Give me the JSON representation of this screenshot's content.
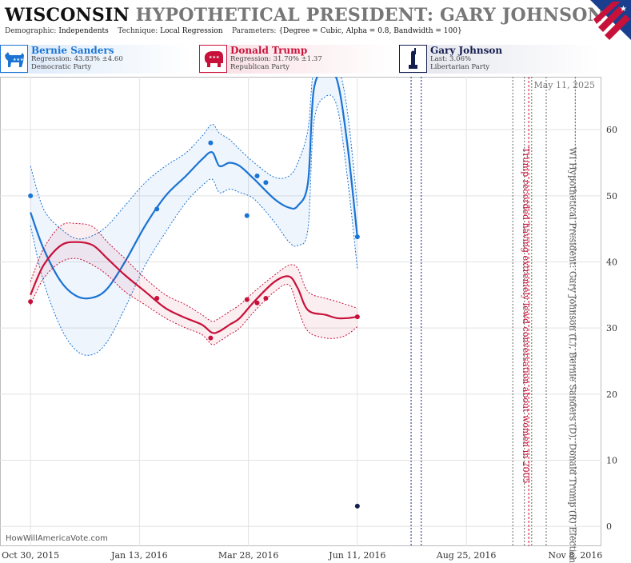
{
  "header": {
    "state": "WISCONSIN",
    "title": "HYPOTHETICAL PRESIDENT: GARY JOHNSON (L) I",
    "demographic_label": "Demographic:",
    "demographic": "Independents",
    "technique_label": "Technique:",
    "technique": "Local Regression",
    "parameters_label": "Parameters:",
    "parameters": "{Degree = Cubic, Alpha = 0.8, Bandwidth = 100}"
  },
  "legend": [
    {
      "name": "Bernie Sanders",
      "stat": "Regression: 43.83% ±4.60",
      "party": "Democratic Party",
      "color": "#1a74d4",
      "icon": "donkey-icon"
    },
    {
      "name": "Donald Trump",
      "stat": "Regression: 31.70% ±1.37",
      "party": "Republican Party",
      "color": "#c8113a",
      "icon": "elephant-icon"
    },
    {
      "name": "Gary Johnson",
      "stat": "Last: 3.06%",
      "party": "Libertarian Party",
      "color": "#131d4e",
      "icon": "liberty-icon"
    }
  ],
  "watermark": "HowWillAmericaVote.com",
  "date_label": "May 11, 2025",
  "chart_data": {
    "type": "line",
    "xlabel": "",
    "ylabel": "",
    "ylim": [
      -3,
      68
    ],
    "xlim": [
      "2015-10-09",
      "2016-11-26"
    ],
    "y_ticks": [
      0,
      10,
      20,
      30,
      40,
      50,
      60
    ],
    "x_ticks": [
      {
        "date": "2015-10-30",
        "label": "Oct 30, 2015"
      },
      {
        "date": "2016-01-13",
        "label": "Jan 13, 2016"
      },
      {
        "date": "2016-03-28",
        "label": "Mar 28, 2016"
      },
      {
        "date": "2016-06-11",
        "label": "Jun 11, 2016"
      },
      {
        "date": "2016-08-25",
        "label": "Aug 25, 2016"
      },
      {
        "date": "2016-11-08",
        "label": "Nov 8, 2016"
      }
    ],
    "grid": true,
    "series": [
      {
        "name": "Bernie Sanders",
        "color": "#1a74d4",
        "points": [
          [
            "2015-10-30",
            50
          ],
          [
            "2016-01-25",
            48
          ],
          [
            "2016-03-02",
            58
          ],
          [
            "2016-03-27",
            47
          ],
          [
            "2016-04-03",
            53
          ],
          [
            "2016-04-09",
            52
          ],
          [
            "2016-06-11",
            43.8
          ]
        ],
        "trend": [
          [
            "2015-10-30",
            47.5
          ],
          [
            "2015-11-08",
            42
          ],
          [
            "2015-11-20",
            37
          ],
          [
            "2015-12-01",
            34.8
          ],
          [
            "2015-12-12",
            34.6
          ],
          [
            "2015-12-22",
            36
          ],
          [
            "2016-01-03",
            40
          ],
          [
            "2016-01-17",
            45.5
          ],
          [
            "2016-01-31",
            50
          ],
          [
            "2016-02-14",
            53
          ],
          [
            "2016-02-25",
            55.5
          ],
          [
            "2016-03-03",
            56.6
          ],
          [
            "2016-03-08",
            54.5
          ],
          [
            "2016-03-15",
            55
          ],
          [
            "2016-03-22",
            54.5
          ],
          [
            "2016-04-01",
            52.5
          ],
          [
            "2016-04-15",
            49.5
          ],
          [
            "2016-04-25",
            48.2
          ],
          [
            "2016-05-01",
            48.5
          ],
          [
            "2016-05-08",
            52
          ],
          [
            "2016-05-12",
            66
          ],
          [
            "2016-05-20",
            69
          ],
          [
            "2016-05-28",
            67.5
          ],
          [
            "2016-06-04",
            58
          ],
          [
            "2016-06-11",
            43.8
          ]
        ],
        "upper": [
          [
            "2015-10-30",
            54.5
          ],
          [
            "2015-11-08",
            48
          ],
          [
            "2015-11-20",
            45
          ],
          [
            "2015-12-01",
            43.5
          ],
          [
            "2015-12-12",
            44
          ],
          [
            "2015-12-22",
            45.5
          ],
          [
            "2016-01-03",
            48.5
          ],
          [
            "2016-01-17",
            52
          ],
          [
            "2016-01-31",
            54.5
          ],
          [
            "2016-02-14",
            56.5
          ],
          [
            "2016-02-25",
            59
          ],
          [
            "2016-03-03",
            60.8
          ],
          [
            "2016-03-08",
            59.5
          ],
          [
            "2016-03-15",
            58.5
          ],
          [
            "2016-03-22",
            57
          ],
          [
            "2016-04-01",
            55
          ],
          [
            "2016-04-15",
            52.8
          ],
          [
            "2016-04-25",
            53
          ],
          [
            "2016-05-01",
            55
          ],
          [
            "2016-05-08",
            60
          ],
          [
            "2016-05-12",
            69
          ],
          [
            "2016-05-20",
            70
          ],
          [
            "2016-05-28",
            70
          ],
          [
            "2016-06-04",
            63
          ],
          [
            "2016-06-11",
            48.5
          ]
        ],
        "lower": [
          [
            "2015-10-30",
            45.5
          ],
          [
            "2015-11-08",
            37
          ],
          [
            "2015-11-20",
            30
          ],
          [
            "2015-12-01",
            26.5
          ],
          [
            "2015-12-12",
            26
          ],
          [
            "2015-12-22",
            28
          ],
          [
            "2016-01-03",
            33
          ],
          [
            "2016-01-17",
            39.5
          ],
          [
            "2016-01-31",
            44.5
          ],
          [
            "2016-02-14",
            49
          ],
          [
            "2016-02-25",
            51.5
          ],
          [
            "2016-03-03",
            52.5
          ],
          [
            "2016-03-08",
            50.5
          ],
          [
            "2016-03-15",
            51
          ],
          [
            "2016-03-22",
            50.5
          ],
          [
            "2016-04-01",
            49.5
          ],
          [
            "2016-04-15",
            46
          ],
          [
            "2016-04-25",
            43
          ],
          [
            "2016-05-01",
            42.5
          ],
          [
            "2016-05-08",
            45
          ],
          [
            "2016-05-12",
            61
          ],
          [
            "2016-05-20",
            65
          ],
          [
            "2016-05-28",
            63.5
          ],
          [
            "2016-06-04",
            53
          ],
          [
            "2016-06-11",
            39
          ]
        ]
      },
      {
        "name": "Donald Trump",
        "color": "#c8113a",
        "points": [
          [
            "2015-10-30",
            34
          ],
          [
            "2016-01-25",
            34.5
          ],
          [
            "2016-03-02",
            28.5
          ],
          [
            "2016-03-27",
            34.3
          ],
          [
            "2016-04-03",
            33.8
          ],
          [
            "2016-04-09",
            34.5
          ],
          [
            "2016-06-11",
            31.7
          ]
        ],
        "trend": [
          [
            "2015-10-30",
            35
          ],
          [
            "2015-11-08",
            39.5
          ],
          [
            "2015-11-20",
            42.5
          ],
          [
            "2015-12-01",
            43
          ],
          [
            "2015-12-12",
            42.5
          ],
          [
            "2015-12-22",
            40.5
          ],
          [
            "2016-01-03",
            38
          ],
          [
            "2016-01-17",
            35.5
          ],
          [
            "2016-01-31",
            33
          ],
          [
            "2016-02-14",
            31.5
          ],
          [
            "2016-02-25",
            30.5
          ],
          [
            "2016-03-03",
            29.3
          ],
          [
            "2016-03-08",
            29.5
          ],
          [
            "2016-03-15",
            30.5
          ],
          [
            "2016-03-22",
            31.5
          ],
          [
            "2016-04-01",
            34
          ],
          [
            "2016-04-15",
            37
          ],
          [
            "2016-04-25",
            37.8
          ],
          [
            "2016-05-01",
            36
          ],
          [
            "2016-05-08",
            32.7
          ],
          [
            "2016-05-20",
            32
          ],
          [
            "2016-05-28",
            31.5
          ],
          [
            "2016-06-04",
            31.5
          ],
          [
            "2016-06-11",
            31.7
          ]
        ],
        "upper": [
          [
            "2015-10-30",
            37
          ],
          [
            "2015-11-08",
            42
          ],
          [
            "2015-11-20",
            45.5
          ],
          [
            "2015-12-01",
            45.8
          ],
          [
            "2015-12-12",
            45.3
          ],
          [
            "2015-12-22",
            43
          ],
          [
            "2016-01-03",
            40.5
          ],
          [
            "2016-01-17",
            37.5
          ],
          [
            "2016-01-31",
            35
          ],
          [
            "2016-02-14",
            33.5
          ],
          [
            "2016-02-25",
            32
          ],
          [
            "2016-03-03",
            31
          ],
          [
            "2016-03-08",
            31.5
          ],
          [
            "2016-03-15",
            32.5
          ],
          [
            "2016-03-22",
            33.5
          ],
          [
            "2016-04-01",
            35.5
          ],
          [
            "2016-04-15",
            38
          ],
          [
            "2016-04-25",
            39.5
          ],
          [
            "2016-05-01",
            39
          ],
          [
            "2016-05-08",
            35.5
          ],
          [
            "2016-05-20",
            34.5
          ],
          [
            "2016-05-28",
            34
          ],
          [
            "2016-06-04",
            33.5
          ],
          [
            "2016-06-11",
            33
          ]
        ],
        "lower": [
          [
            "2015-10-30",
            33.5
          ],
          [
            "2015-11-08",
            37.5
          ],
          [
            "2015-11-20",
            40
          ],
          [
            "2015-12-01",
            40.5
          ],
          [
            "2015-12-12",
            39.5
          ],
          [
            "2015-12-22",
            38
          ],
          [
            "2016-01-03",
            35.5
          ],
          [
            "2016-01-17",
            33.5
          ],
          [
            "2016-01-31",
            31.5
          ],
          [
            "2016-02-14",
            30
          ],
          [
            "2016-02-25",
            29
          ],
          [
            "2016-03-03",
            27.5
          ],
          [
            "2016-03-08",
            28
          ],
          [
            "2016-03-15",
            29
          ],
          [
            "2016-03-22",
            30
          ],
          [
            "2016-04-01",
            32.5
          ],
          [
            "2016-04-15",
            35.5
          ],
          [
            "2016-04-25",
            36.5
          ],
          [
            "2016-05-01",
            33
          ],
          [
            "2016-05-08",
            29.5
          ],
          [
            "2016-05-20",
            28.5
          ],
          [
            "2016-05-28",
            28.5
          ],
          [
            "2016-06-04",
            29
          ],
          [
            "2016-06-11",
            30.2
          ]
        ]
      },
      {
        "name": "Gary Johnson",
        "color": "#131d4e",
        "points": [
          [
            "2016-06-11",
            3.06
          ]
        ]
      }
    ],
    "events": [
      {
        "date": "2016-07-18",
        "color": "#1a237e",
        "dash": "2,2"
      },
      {
        "date": "2016-07-25",
        "color": "#1a237e",
        "dash": "2,2"
      },
      {
        "date": "2016-09-26",
        "color": "#666",
        "dash": "2,2"
      },
      {
        "date": "2016-10-04",
        "color": "#666",
        "dash": "2,2"
      },
      {
        "date": "2016-10-07",
        "color": "#c8113a",
        "dash": "3,2"
      },
      {
        "date": "2016-10-09",
        "color": "#666",
        "dash": "2,2"
      },
      {
        "date": "2016-10-19",
        "color": "#666",
        "dash": "2,2"
      },
      {
        "date": "2016-11-08",
        "color": "#666",
        "dash": "2,2"
      }
    ],
    "annotations": [
      {
        "text": "Trump recorded having extremely lewd conversation about women in 2005",
        "date": "2016-10-07",
        "color": "#c8113a"
      },
      {
        "text": "WI Hypothetical President: Gary Johnson (L), Bernie Sanders (D), Donald Trump (R) Election",
        "date": "2016-11-08",
        "color": "#555"
      }
    ]
  }
}
